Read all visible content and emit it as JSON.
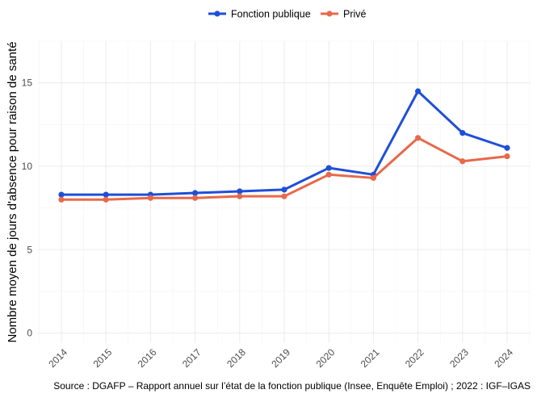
{
  "chart_data": {
    "type": "line",
    "title": "",
    "xlabel": "",
    "ylabel": "Nombre moyen de jours d'absence pour raison de santé",
    "categories": [
      "2014",
      "2015",
      "2016",
      "2017",
      "2018",
      "2019",
      "2020",
      "2021",
      "2022",
      "2023",
      "2024"
    ],
    "series": [
      {
        "name": "Fonction publique",
        "color": "#1f4fd8",
        "values": [
          8.3,
          8.3,
          8.3,
          8.4,
          8.5,
          8.6,
          9.9,
          9.5,
          14.5,
          12.0,
          11.1
        ]
      },
      {
        "name": "Privé",
        "color": "#e8694a",
        "values": [
          8.0,
          8.0,
          8.1,
          8.1,
          8.2,
          8.2,
          9.5,
          9.3,
          11.7,
          10.3,
          10.6
        ]
      }
    ],
    "yticks": [
      0,
      5,
      10,
      15
    ],
    "ylim": [
      -0.6,
      17.5
    ],
    "grid": true,
    "legend": "top-center",
    "caption": "Source : DGAFP – Rapport annuel sur l’état de la fonction publique (Insee, Enquête Emploi) ; 2022 : IGF–IGAS"
  }
}
